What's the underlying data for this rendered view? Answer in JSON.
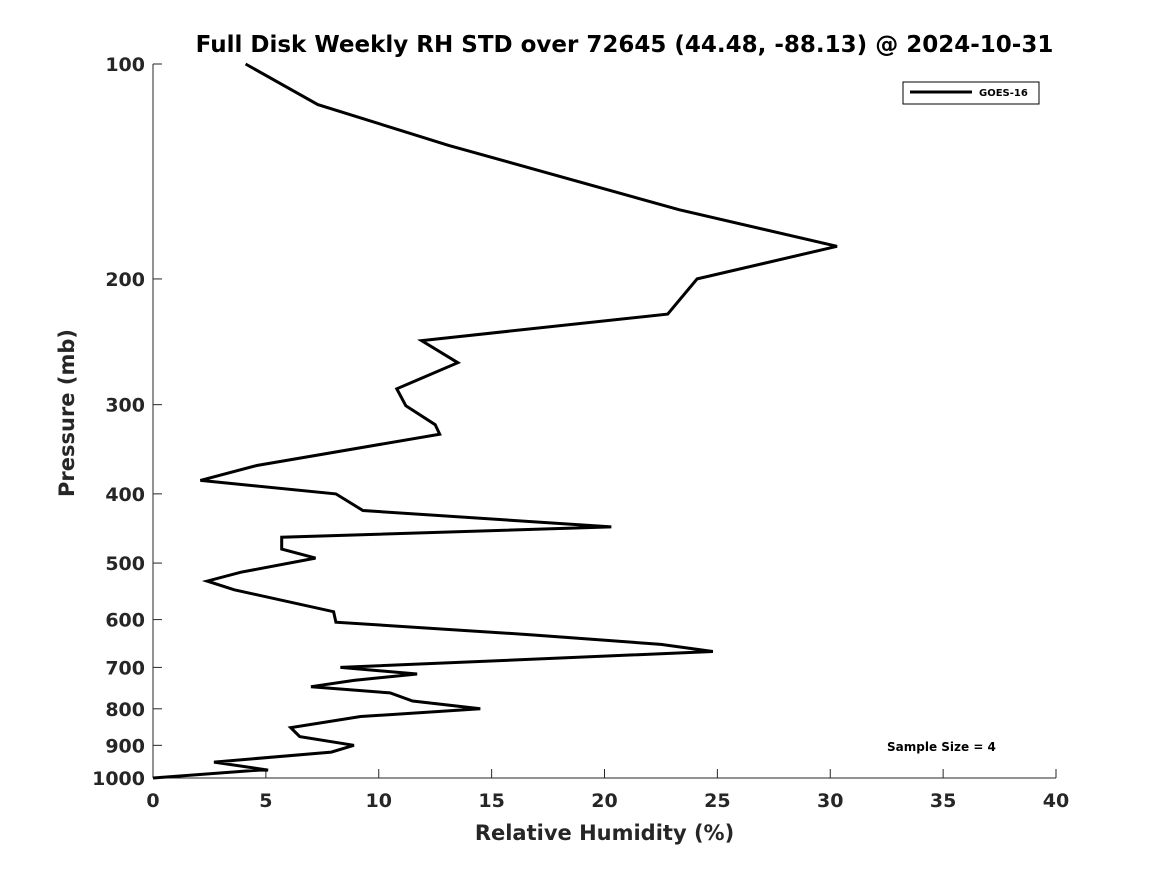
{
  "chart_data": {
    "type": "line",
    "title": "Full Disk Weekly RH STD over 72645 (44.48, -88.13) @ 2024-10-31",
    "xlabel": "Relative Humidity (%)",
    "ylabel": "Pressure (mb)",
    "xlim": [
      0,
      40
    ],
    "ylim": [
      100,
      1000
    ],
    "yscale": "log",
    "y_reversed": true,
    "xticks": [
      0,
      5,
      10,
      15,
      20,
      25,
      30,
      35,
      40
    ],
    "xtick_labels": [
      "0",
      "5",
      "10",
      "15",
      "20",
      "25",
      "30",
      "35",
      "40"
    ],
    "yticks": [
      100,
      200,
      300,
      400,
      500,
      600,
      700,
      800,
      900,
      1000
    ],
    "ytick_labels": [
      "100",
      "200",
      "300",
      "400",
      "500",
      "600",
      "700",
      "800",
      "900",
      "1000"
    ],
    "grid": false,
    "legend_position": "top-right",
    "annotation": "Sample Size = 4",
    "color": "#000000",
    "series": [
      {
        "name": "GOES-16",
        "x": [
          4.1,
          7.3,
          13.1,
          23.3,
          30.3,
          24.1,
          22.8,
          11.9,
          13.5,
          10.8,
          11.2,
          12.5,
          12.7,
          4.6,
          2.1,
          8.1,
          9.3,
          20.3,
          5.7,
          5.7,
          7.2,
          3.9,
          2.4,
          3.6,
          8.0,
          8.1,
          16.7,
          22.5,
          24.8,
          8.3,
          11.7,
          8.9,
          7.0,
          10.5,
          11.5,
          14.5,
          9.2,
          6.1,
          6.5,
          8.9,
          7.9,
          2.7,
          5.1,
          4.7,
          0.0
        ],
        "y": [
          100,
          114,
          130,
          160,
          180,
          200,
          224,
          244,
          262,
          285,
          301,
          320,
          330,
          365,
          383,
          400,
          422,
          445,
          460,
          478,
          492,
          515,
          530,
          545,
          585,
          605,
          630,
          650,
          665,
          700,
          715,
          730,
          745,
          760,
          780,
          800,
          820,
          850,
          875,
          900,
          920,
          950,
          975,
          975,
          1000
        ]
      }
    ]
  }
}
